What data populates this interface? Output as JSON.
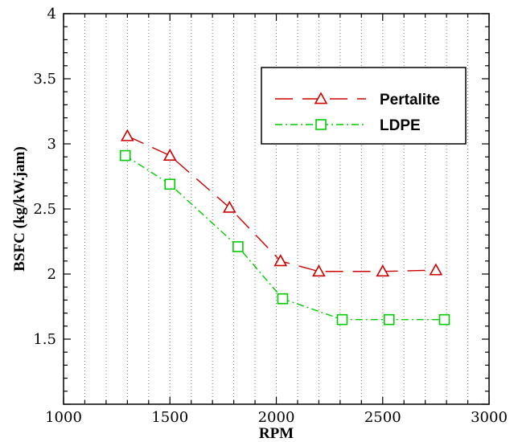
{
  "chart_data": {
    "type": "line",
    "xlabel": "RPM",
    "ylabel": "BSFC (kg/kW.jam)",
    "xlim": [
      1000,
      3000
    ],
    "ylim": [
      1,
      4
    ],
    "x_ticks": [
      1000,
      1500,
      2000,
      2500,
      3000
    ],
    "y_ticks": [
      1.5,
      2,
      2.5,
      3,
      3.5,
      4
    ],
    "x_minor_step": 100,
    "grid": "vertical dotted lines every 100 RPM",
    "legend_position": "upper-right",
    "series": [
      {
        "name": "Pertalite",
        "color": "#cc0000",
        "marker": "triangle",
        "line_style": "long-dash",
        "x": [
          1300,
          1500,
          1780,
          2020,
          2200,
          2500,
          2750
        ],
        "y": [
          3.06,
          2.91,
          2.51,
          2.1,
          2.02,
          2.02,
          2.03
        ]
      },
      {
        "name": "LDPE",
        "color": "#00cc00",
        "marker": "square",
        "line_style": "dash-dot",
        "x": [
          1290,
          1500,
          1820,
          2030,
          2310,
          2530,
          2790
        ],
        "y": [
          2.91,
          2.69,
          2.21,
          1.81,
          1.65,
          1.65,
          1.65
        ]
      }
    ]
  }
}
